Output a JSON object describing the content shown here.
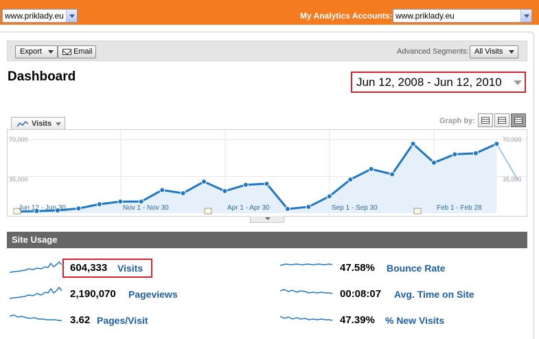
{
  "topbar": {
    "site_select": "www.priklady.eu",
    "accounts_label": "My Analytics Accounts:",
    "accounts_select": "www.priklady.eu"
  },
  "toolbar": {
    "export_label": "Export",
    "email_label": "Email",
    "advanced_segments_label": "Advanced Segments:",
    "segments_value": "All Visits"
  },
  "page": {
    "title": "Dashboard",
    "date_range": "Jun 12, 2008 - Jun 12, 2010"
  },
  "graph": {
    "metric_tab": "Visits",
    "graph_by_label": "Graph by:",
    "graph_by_options": [
      "day",
      "week",
      "month"
    ],
    "graph_by_selected": "month",
    "y_ticks_left": [
      "70,000",
      "35,000"
    ],
    "y_ticks_right": [
      "70,000",
      "35,000"
    ],
    "x_labels": [
      "Jun 12 - Jun 30",
      "Nov 1 - Nov 30",
      "Apr 1 - Apr 30",
      "Sep 1 - Sep 30",
      "Feb 1 - Feb 28"
    ],
    "line_color": "#1f77c4",
    "fill_color": "#e5f0fa"
  },
  "chart_data": {
    "type": "line",
    "title": "",
    "xlabel": "",
    "ylabel": "",
    "ylim": [
      0,
      70000
    ],
    "grid": true,
    "series": [
      {
        "name": "Visits",
        "values": [
          1500,
          2000,
          2500,
          4500,
          8500,
          11000,
          11000,
          22000,
          19000,
          30000,
          21000,
          27000,
          28000,
          4000,
          6000,
          16000,
          32000,
          42000,
          37000,
          66000,
          48000,
          56000,
          57000,
          66000,
          32000
        ]
      }
    ],
    "partial_last_point": true
  },
  "usage": {
    "header": "Site Usage",
    "stats": [
      {
        "value": "604,333",
        "label": "Visits"
      },
      {
        "value": "2,190,070",
        "label": "Pageviews"
      },
      {
        "value": "3.62",
        "label": "Pages/Visit"
      },
      {
        "value": "47.58%",
        "label": "Bounce Rate"
      },
      {
        "value": "00:08:07",
        "label": "Avg. Time on Site"
      },
      {
        "value": "47.39%",
        "label": "% New Visits"
      }
    ]
  }
}
